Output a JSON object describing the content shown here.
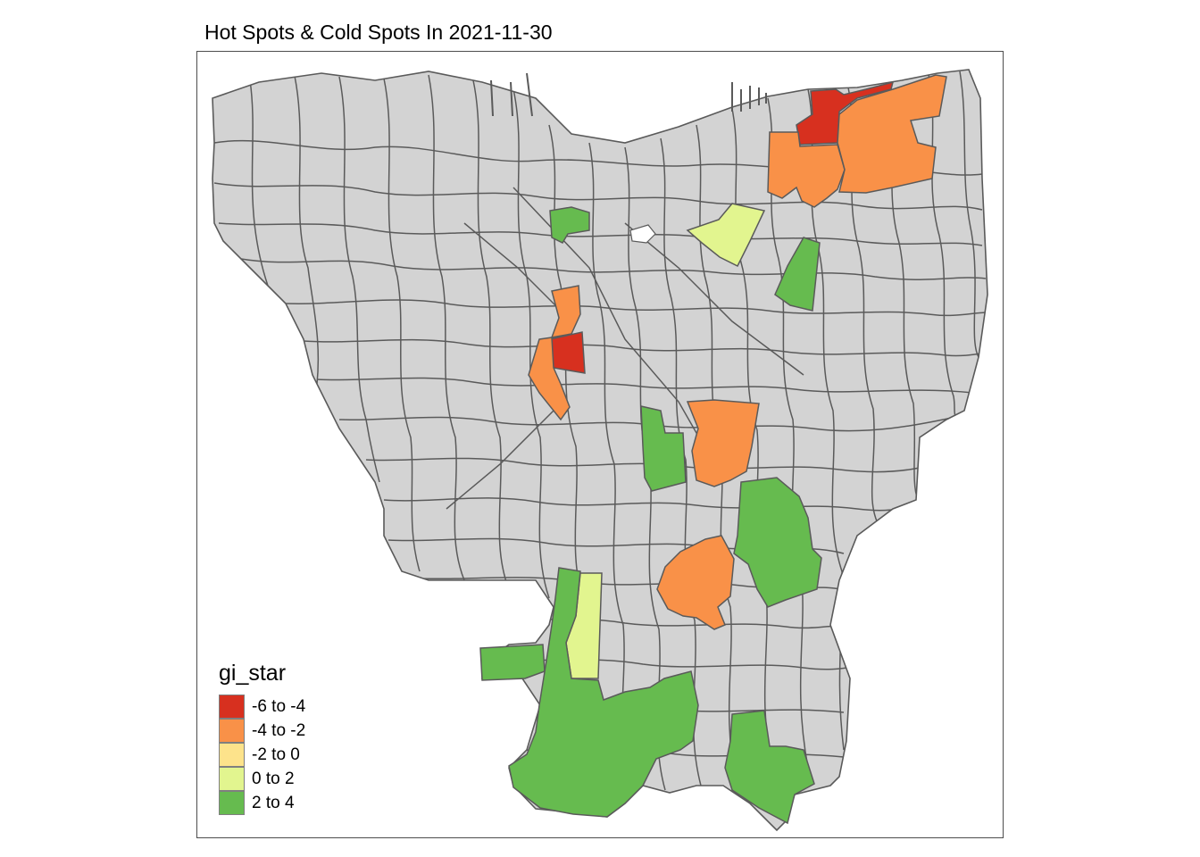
{
  "title": "Hot Spots & Cold Spots In 2021-11-30",
  "legend": {
    "title": "gi_star",
    "classes": [
      {
        "label": "-6 to -4",
        "color": "#d7301f"
      },
      {
        "label": "-4 to -2",
        "color": "#f99148"
      },
      {
        "label": "-2 to 0",
        "color": "#fde38b"
      },
      {
        "label": "0 to 2",
        "color": "#e2f58f"
      },
      {
        "label": "2 to 4",
        "color": "#66bb4f"
      }
    ]
  },
  "colors": {
    "neutral_fill": "#d3d3d3",
    "border": "#5a5a5a",
    "frame": "#4d4d4d"
  }
}
